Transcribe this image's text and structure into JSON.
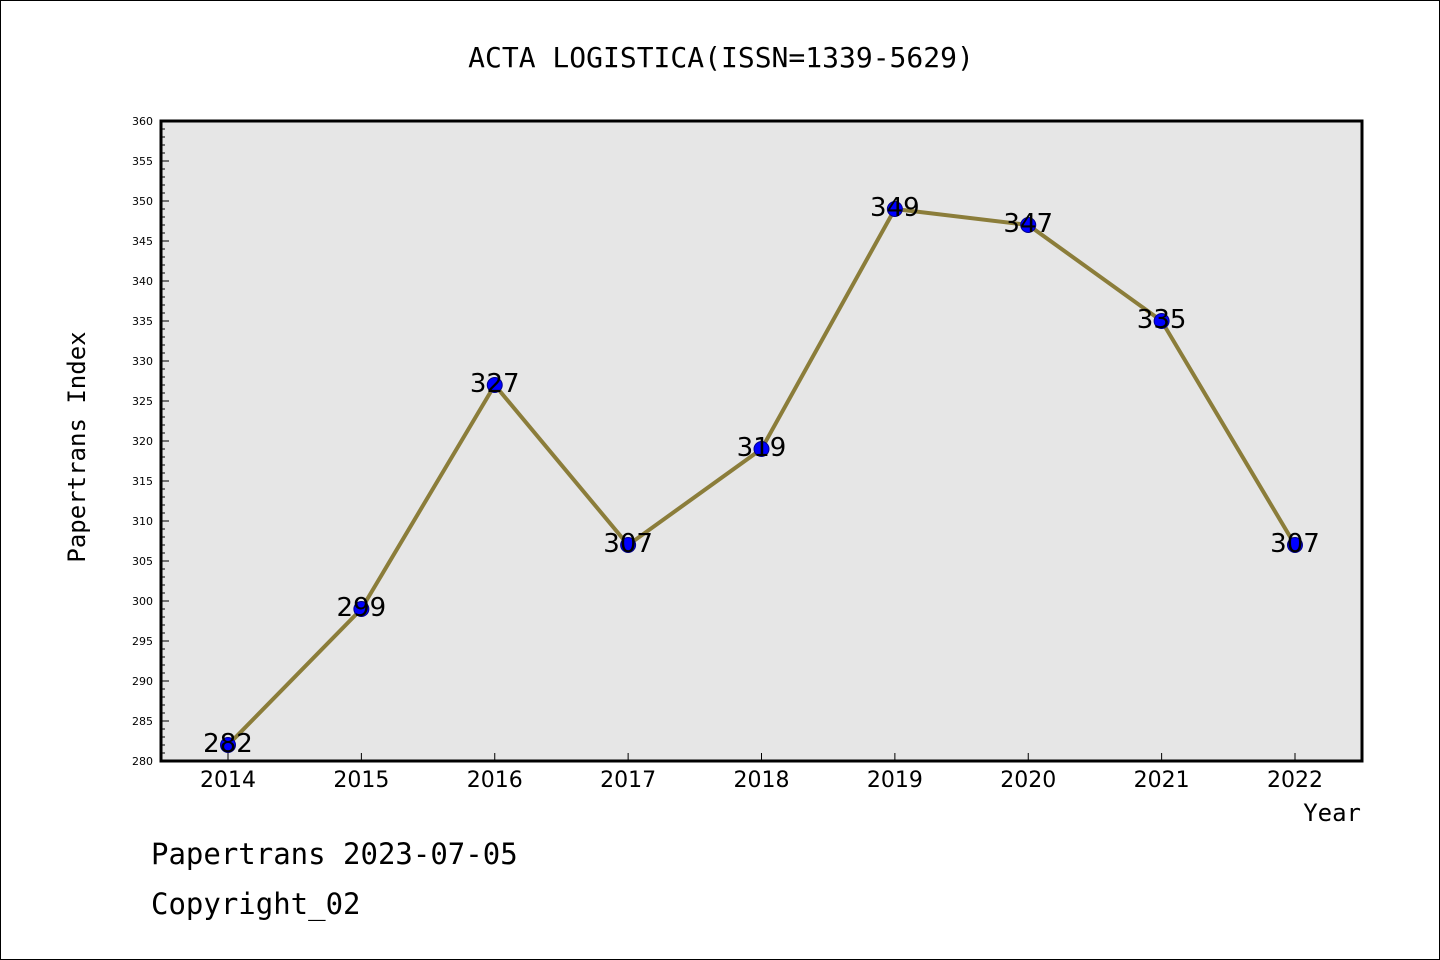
{
  "footer": {
    "date_text": "Papertrans 2023-07-05",
    "copyright_text": "Copyright_02"
  },
  "chart_data": {
    "type": "line",
    "title": "ACTA LOGISTICA(ISSN=1339-5629)",
    "xlabel": "Year",
    "ylabel": "Papertrans Index",
    "categories": [
      "2014",
      "2015",
      "2016",
      "2017",
      "2018",
      "2019",
      "2020",
      "2021",
      "2022"
    ],
    "series": [
      {
        "values": [
          282,
          299,
          327,
          307,
          319,
          349,
          347,
          335,
          307
        ]
      }
    ],
    "data_labels": [
      "282",
      "299",
      "327",
      "307",
      "319",
      "349",
      "347",
      "335",
      "307"
    ],
    "ylim": [
      280,
      360
    ],
    "yticks": [
      280,
      285,
      290,
      295,
      300,
      305,
      310,
      315,
      320,
      325,
      330,
      335,
      340,
      345,
      350,
      355,
      360
    ],
    "grid": false,
    "legend": "none",
    "colors": {
      "line": "#8b7d3a",
      "marker": "#0000ff",
      "plot_background": "#e6e6e6",
      "axis": "#000000"
    }
  }
}
